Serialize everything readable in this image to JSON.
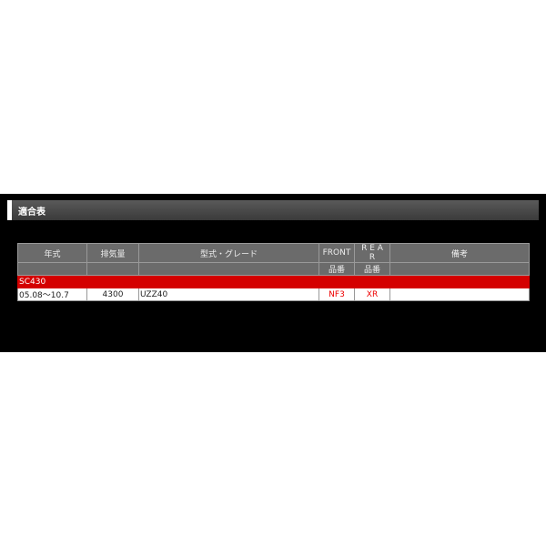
{
  "section_title": "適合表",
  "headers": [
    "年式",
    "排気量",
    "型式・グレード",
    "FRONT",
    "R E A R",
    "備考"
  ],
  "subheaders": [
    "",
    "",
    "",
    "品番",
    "品番",
    ""
  ],
  "group": "SC430",
  "rows": [
    {
      "year": "05.08～10.7",
      "displacement": "4300",
      "model": "UZZ40",
      "front": "NF3",
      "rear": "XR",
      "note": ""
    }
  ],
  "colors": {
    "header_bg": "#6b6b6b",
    "group_bg": "#d40000",
    "part_text": "#e00000"
  }
}
